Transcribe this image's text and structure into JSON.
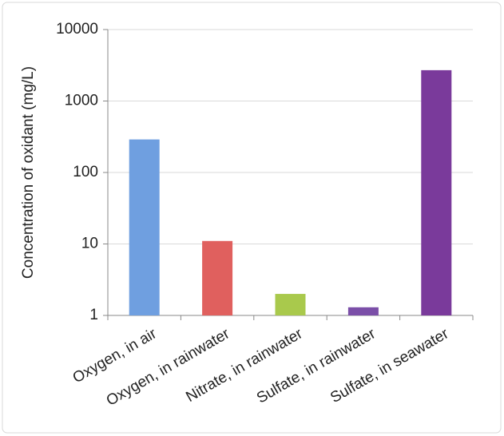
{
  "chart_data": {
    "type": "bar",
    "y_label": "Concentration of oxidant (mg/L)",
    "categories": [
      "Oxygen, in air",
      "Oxygen, in rainwater",
      "Nitrate, in rainwater",
      "Sulfate, in rainwater",
      "Sulfate, in seawater"
    ],
    "values": [
      290,
      11,
      2,
      1.3,
      2700
    ],
    "colors": [
      "#6f9fe0",
      "#e0605e",
      "#a9c94c",
      "#7b4fa8",
      "#7a3a9b"
    ],
    "ylim": [
      1,
      10000
    ],
    "yticks": [
      1,
      10,
      100,
      1000,
      10000
    ],
    "log_scale": true,
    "grid": true
  }
}
